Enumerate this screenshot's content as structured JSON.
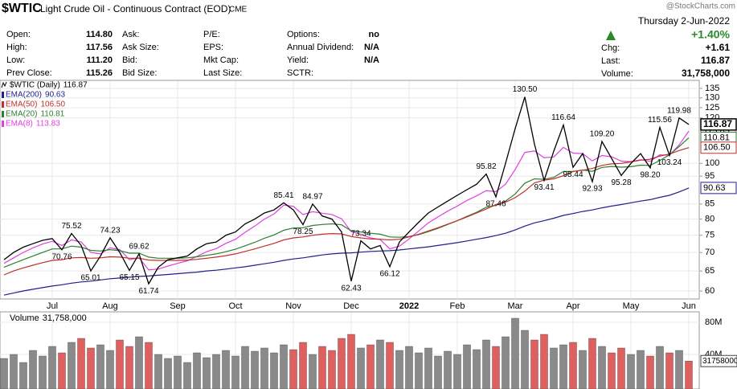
{
  "header": {
    "symbol": "$WTIC",
    "name": "Light Crude Oil - Continuous Contract (EOD)",
    "exchange": "CME",
    "watermark": "@StockCharts.com",
    "date": "Thursday  2-Jun-2022",
    "change_pct": "+1.40%",
    "columns": [
      [
        {
          "label": "Open:",
          "value": "114.80"
        },
        {
          "label": "High:",
          "value": "117.56"
        },
        {
          "label": "Low:",
          "value": "111.20"
        },
        {
          "label": "Prev Close:",
          "value": "115.26"
        }
      ],
      [
        {
          "label": "Ask:"
        },
        {
          "label": "Ask Size:"
        },
        {
          "label": "Bid:"
        },
        {
          "label": "Bid Size:"
        }
      ],
      [
        {
          "label": "P/E:"
        },
        {
          "label": "EPS:"
        },
        {
          "label": "Mkt Cap:"
        },
        {
          "label": "Last Size:"
        }
      ],
      [
        {
          "label": "Options:",
          "value": "no"
        },
        {
          "label": "Annual Dividend:",
          "value": "N/A"
        },
        {
          "label": "Yield:",
          "value": "N/A"
        },
        {
          "label": "SCTR:"
        }
      ]
    ],
    "quote": [
      {
        "label": "Chg:",
        "value": "+1.61"
      },
      {
        "label": "Last:",
        "value": "116.87"
      },
      {
        "label": "Volume:",
        "value": "31,758,000"
      }
    ]
  },
  "chart_data": [
    {
      "type": "line",
      "log": true,
      "grid": true,
      "categories": [
        null,
        null,
        null,
        null,
        null,
        "Jul",
        null,
        null,
        null,
        null,
        null,
        "Aug",
        null,
        null,
        null,
        null,
        null,
        null,
        "Sep",
        null,
        null,
        null,
        null,
        null,
        "Oct",
        null,
        null,
        null,
        null,
        null,
        "Nov",
        null,
        null,
        null,
        null,
        null,
        "Dec",
        null,
        null,
        null,
        null,
        null,
        "2022",
        null,
        null,
        null,
        null,
        "Feb",
        null,
        null,
        null,
        null,
        null,
        "Mar",
        null,
        null,
        null,
        null,
        null,
        "Apr",
        null,
        null,
        null,
        null,
        null,
        "May",
        null,
        null,
        null,
        null,
        null,
        "Jun"
      ],
      "ylim": [
        58.1,
        139
      ],
      "yticks": [
        60,
        65,
        70,
        75,
        80,
        85,
        95,
        100,
        120,
        125,
        130,
        135
      ],
      "series": [
        {
          "name": "$WTIC (Daily)",
          "color": "#000000",
          "values": [
            68,
            70,
            71.5,
            72.5,
            73.5,
            74,
            70.76,
            75.52,
            72,
            65.01,
            69,
            74.23,
            70,
            65.15,
            69.62,
            61.74,
            66,
            68,
            68.5,
            69,
            71,
            72.5,
            73,
            75,
            76,
            78.5,
            80,
            82,
            83,
            85.41,
            83,
            78.25,
            84.97,
            81,
            80,
            76,
            62.43,
            73.34,
            71,
            72,
            66.12,
            73,
            76,
            79,
            82,
            84,
            86,
            88,
            90,
            92,
            95.82,
            87.46,
            100,
            115,
            130.5,
            108,
            93.41,
            105,
            116.64,
            98.44,
            104,
            92.93,
            109.2,
            102,
            95.28,
            100,
            104,
            98.2,
            115.56,
            103.24,
            119.98,
            116.87
          ],
          "value_labels": [
            null,
            null,
            null,
            null,
            null,
            null,
            "70.76",
            "75.52",
            null,
            "65.01",
            null,
            "74.23",
            null,
            "65.15",
            "69.62",
            "61.74",
            null,
            null,
            null,
            null,
            null,
            null,
            null,
            null,
            null,
            null,
            null,
            null,
            null,
            "85.41",
            null,
            "78.25",
            "84.97",
            null,
            null,
            null,
            "62.43",
            "73.34",
            null,
            null,
            "66.12",
            null,
            null,
            null,
            null,
            null,
            null,
            null,
            null,
            null,
            "95.82",
            "87.46",
            null,
            null,
            "130.50",
            null,
            "93.41",
            null,
            "116.64",
            "98.44",
            null,
            "92.93",
            "109.20",
            null,
            "95.28",
            null,
            null,
            "98.20",
            "115.56",
            "103.24",
            "119.98",
            null
          ]
        },
        {
          "name": "EMA(200)",
          "color": "#1f1f8f",
          "values": [
            59,
            59.5,
            60,
            60.4,
            60.8,
            61.2,
            61.5,
            61.9,
            62.2,
            62.4,
            62.7,
            63,
            63.2,
            63.4,
            63.6,
            63.7,
            63.9,
            64.1,
            64.3,
            64.5,
            64.7,
            65,
            65.2,
            65.5,
            65.8,
            66.1,
            66.5,
            66.9,
            67.3,
            67.8,
            68.2,
            68.5,
            68.9,
            69.3,
            69.6,
            69.8,
            69.9,
            70.1,
            70.3,
            70.4,
            70.5,
            70.7,
            71,
            71.3,
            71.6,
            72,
            72.4,
            72.8,
            73.3,
            73.8,
            74.3,
            74.9,
            75.6,
            76.6,
            77.8,
            78.8,
            79.5,
            80.3,
            81.2,
            81.8,
            82.5,
            83,
            83.7,
            84.3,
            84.8,
            85.4,
            86,
            86.5,
            87.3,
            88,
            89.2,
            90.63
          ]
        },
        {
          "name": "EMA(50)",
          "color": "#c0302a",
          "values": [
            64,
            65,
            65.8,
            66.5,
            67.2,
            67.8,
            68,
            68.5,
            68.6,
            68.4,
            68.5,
            68.8,
            68.7,
            68.4,
            68.4,
            67.9,
            67.8,
            67.8,
            67.8,
            67.9,
            68.1,
            68.4,
            68.7,
            69.1,
            69.6,
            70.3,
            71,
            71.8,
            72.6,
            73.6,
            74.2,
            74.5,
            75,
            75.3,
            75.5,
            75.4,
            74.6,
            74.2,
            73.9,
            73.8,
            73.6,
            73.8,
            74.5,
            75.3,
            76.3,
            77.3,
            78.4,
            79.5,
            80.7,
            82,
            83.3,
            84.8,
            85.6,
            87.2,
            89.5,
            92.5,
            93.5,
            94,
            95.2,
            96.8,
            97.3,
            98,
            99.2,
            99.8,
            100,
            100.6,
            101.3,
            101.7,
            103,
            103.8,
            105.3,
            106.5
          ],
          "value_labels": [
            null,
            null,
            null,
            null,
            null,
            null,
            null,
            null,
            null,
            null,
            null,
            null,
            null,
            null,
            null,
            null,
            null,
            null,
            null,
            null,
            null,
            null,
            null,
            null,
            null,
            null,
            null,
            null,
            null,
            null,
            null,
            null,
            null,
            null,
            null,
            null,
            null,
            null,
            null,
            null,
            null,
            null,
            null,
            null,
            null,
            null,
            null,
            null,
            null,
            null,
            null,
            null,
            null,
            null,
            null,
            null,
            null,
            null,
            null,
            null,
            null,
            null,
            null,
            null,
            null,
            null,
            null,
            null,
            null,
            null,
            null,
            "106.50"
          ]
        },
        {
          "name": "EMA(20)",
          "color": "#2e7d32",
          "values": [
            66,
            67,
            68,
            69,
            70,
            71,
            71,
            71.8,
            71.5,
            70.6,
            70.4,
            70.8,
            70.5,
            69.8,
            69.8,
            68.7,
            68.4,
            68.4,
            68.4,
            68.5,
            68.8,
            69.2,
            69.6,
            70.2,
            70.9,
            71.9,
            72.9,
            74.1,
            75.1,
            76.5,
            77.2,
            77.3,
            78,
            78.3,
            78.5,
            78.2,
            76.3,
            76,
            75.6,
            75.3,
            74.5,
            74.4,
            74.6,
            75.2,
            76.1,
            77.1,
            78.3,
            79.5,
            80.9,
            82.2,
            83.9,
            84.5,
            86,
            88.5,
            92.4,
            94,
            93.8,
            94.6,
            96.8,
            96.8,
            97.4,
            96.9,
            98.4,
            98.8,
            98.5,
            98.7,
            99.3,
            99.2,
            101.2,
            103.5,
            107,
            110.81
          ]
        },
        {
          "name": "EMA(8)",
          "color": "#e040e0",
          "values": [
            67,
            68.5,
            70,
            71.3,
            72.4,
            73.2,
            72,
            73.6,
            73,
            70,
            69.6,
            71.3,
            70.8,
            68,
            68.5,
            65.3,
            65.5,
            66.3,
            67,
            67.7,
            68.9,
            70.2,
            71.1,
            72.6,
            73.8,
            75.9,
            77.8,
            80,
            81.7,
            84.6,
            84.2,
            81.5,
            82.4,
            81.9,
            81.5,
            80.1,
            76.1,
            75.3,
            74.2,
            73.7,
            71,
            71.8,
            73.9,
            76.3,
            78.8,
            80.7,
            82.6,
            84.3,
            86.2,
            87.8,
            89.7,
            89.3,
            92,
            97.6,
            104.5,
            105.1,
            102.3,
            102.6,
            106.6,
            104.2,
            104,
            101,
            103.2,
            102.7,
            100.9,
            100.7,
            101.5,
            100.8,
            103.5,
            103.3,
            107.7,
            113.83
          ]
        }
      ]
    },
    {
      "type": "bar",
      "title": "Volume",
      "up_color": "#8a8a8a",
      "down_color": "#e06060",
      "ylim": [
        0,
        91000000
      ],
      "yticks": [
        {
          "value": 40000000,
          "label": "40M"
        },
        {
          "value": 80000000,
          "label": "80M"
        }
      ],
      "values": [
        35000000,
        40000000,
        30000000,
        45000000,
        38000000,
        50000000,
        42000000,
        55000000,
        60000000,
        48000000,
        52000000,
        45000000,
        58000000,
        50000000,
        62000000,
        55000000,
        40000000,
        35000000,
        38000000,
        30000000,
        42000000,
        36000000,
        40000000,
        45000000,
        38000000,
        50000000,
        44000000,
        48000000,
        42000000,
        52000000,
        46000000,
        55000000,
        40000000,
        50000000,
        45000000,
        60000000,
        65000000,
        48000000,
        52000000,
        58000000,
        55000000,
        45000000,
        50000000,
        42000000,
        48000000,
        38000000,
        44000000,
        40000000,
        52000000,
        46000000,
        58000000,
        50000000,
        62000000,
        85000000,
        70000000,
        58000000,
        65000000,
        48000000,
        52000000,
        55000000,
        45000000,
        60000000,
        50000000,
        42000000,
        48000000,
        40000000,
        45000000,
        38000000,
        50000000,
        42000000,
        45000000,
        31758000
      ],
      "value_labels": [
        null,
        null,
        null,
        null,
        null,
        null,
        null,
        null,
        null,
        null,
        null,
        null,
        null,
        null,
        null,
        null,
        null,
        null,
        null,
        null,
        null,
        null,
        null,
        null,
        null,
        null,
        null,
        null,
        null,
        null,
        null,
        null,
        null,
        null,
        null,
        null,
        null,
        null,
        null,
        null,
        null,
        null,
        null,
        null,
        null,
        null,
        null,
        null,
        null,
        null,
        null,
        null,
        null,
        null,
        null,
        null,
        null,
        null,
        null,
        null,
        null,
        null,
        null,
        null,
        null,
        null,
        null,
        null,
        null,
        null,
        null,
        "31,758,000"
      ]
    }
  ]
}
